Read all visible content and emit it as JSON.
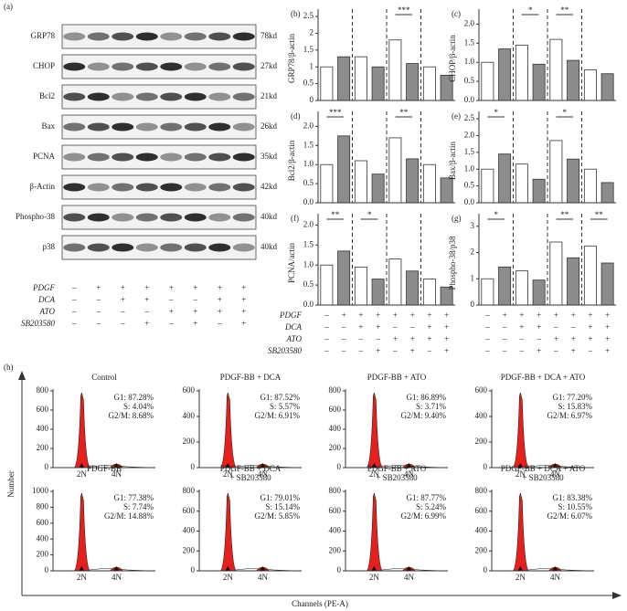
{
  "panel_a": {
    "label": "(a)",
    "rows": [
      {
        "name": "GRP78",
        "size": "78kd"
      },
      {
        "name": "CHOP",
        "size": "27kd"
      },
      {
        "name": "Bcl2",
        "size": "21kd"
      },
      {
        "name": "Bax",
        "size": "26kd"
      },
      {
        "name": "PCNA",
        "size": "35kd"
      },
      {
        "name": "β-Actin",
        "size": "42kd"
      },
      {
        "name": "Phospho-38",
        "size": "40kd"
      },
      {
        "name": "p38",
        "size": "40kd"
      }
    ]
  },
  "treatments": [
    {
      "name": "PDGF",
      "signs": [
        "–",
        "+",
        "+",
        "+",
        "+",
        "+",
        "+",
        "+"
      ]
    },
    {
      "name": "DCA",
      "signs": [
        "–",
        "–",
        "+",
        "+",
        "–",
        "–",
        "+",
        "+"
      ]
    },
    {
      "name": "ATO",
      "signs": [
        "–",
        "–",
        "–",
        "–",
        "+",
        "+",
        "+",
        "+"
      ]
    },
    {
      "name": "SB203580",
      "signs": [
        "–",
        "–",
        "–",
        "+",
        "–",
        "+",
        "–",
        "+"
      ]
    }
  ],
  "chart_data": [
    {
      "type": "bar",
      "label": "(b)",
      "ylabel": "GRP78/β-actin",
      "values": [
        1.0,
        1.3,
        1.3,
        1.0,
        1.8,
        1.1,
        1.0,
        0.75
      ],
      "colors": [
        "#ffffff",
        "#8c8c8c",
        "#ffffff",
        "#8c8c8c",
        "#ffffff",
        "#8c8c8c",
        "#ffffff",
        "#8c8c8c"
      ],
      "significance": [
        null,
        null,
        "***",
        null
      ],
      "ylim": [
        0,
        2.5
      ],
      "yticks": [
        0,
        0.5,
        1,
        1.5,
        2,
        2.5
      ]
    },
    {
      "type": "bar",
      "label": "(c)",
      "ylabel": "CHOP/β-actin",
      "values": [
        1.0,
        1.35,
        1.45,
        0.95,
        1.6,
        1.05,
        0.8,
        0.7
      ],
      "colors": [
        "#ffffff",
        "#8c8c8c",
        "#ffffff",
        "#8c8c8c",
        "#ffffff",
        "#8c8c8c",
        "#ffffff",
        "#8c8c8c"
      ],
      "significance": [
        null,
        "*",
        "**",
        null
      ],
      "ylim": [
        0,
        2.2
      ],
      "yticks": [
        {
          "value": 0,
          "label": "0.0"
        },
        {
          "value": 0.5,
          "label": "0.5"
        },
        {
          "value": 1,
          "label": "1.0"
        },
        {
          "value": 1.5,
          "label": "1.5"
        },
        {
          "value": 2,
          "label": "2.0"
        }
      ]
    },
    {
      "type": "bar",
      "label": "(d)",
      "ylabel": "Bcl2/β-actin",
      "values": [
        1.0,
        1.75,
        1.1,
        0.75,
        1.7,
        1.15,
        1.0,
        0.65
      ],
      "colors": [
        "#ffffff",
        "#8c8c8c",
        "#ffffff",
        "#8c8c8c",
        "#ffffff",
        "#8c8c8c",
        "#ffffff",
        "#8c8c8c"
      ],
      "significance": [
        "***",
        null,
        "**",
        null
      ],
      "ylim": [
        0,
        2.2
      ],
      "yticks": [
        {
          "value": 0,
          "label": "0.0"
        },
        {
          "value": 0.5,
          "label": "0.5"
        },
        {
          "value": 1,
          "label": "1.0"
        },
        {
          "value": 1.5,
          "label": "1.5"
        },
        {
          "value": 2,
          "label": "2.0"
        }
      ]
    },
    {
      "type": "bar",
      "label": "(e)",
      "ylabel": "Bax/β-actin",
      "values": [
        1.0,
        1.45,
        1.15,
        0.7,
        1.85,
        1.3,
        1.0,
        0.6
      ],
      "colors": [
        "#ffffff",
        "#8c8c8c",
        "#ffffff",
        "#8c8c8c",
        "#ffffff",
        "#8c8c8c",
        "#ffffff",
        "#8c8c8c"
      ],
      "significance": [
        "*",
        null,
        "*",
        null
      ],
      "ylim": [
        0,
        2.5
      ],
      "yticks": [
        {
          "value": 0,
          "label": "0.0"
        },
        {
          "value": 0.5,
          "label": "0.5"
        },
        {
          "value": 1,
          "label": "1.0"
        },
        {
          "value": 1.5,
          "label": "1.5"
        },
        {
          "value": 2,
          "label": "2.0"
        },
        {
          "value": 2.5,
          "label": "2.5"
        }
      ]
    },
    {
      "type": "bar",
      "label": "(f)",
      "ylabel": "PCNA/actin",
      "values": [
        1.0,
        1.35,
        0.95,
        0.65,
        1.15,
        0.85,
        0.65,
        0.45
      ],
      "colors": [
        "#ffffff",
        "#8c8c8c",
        "#ffffff",
        "#8c8c8c",
        "#ffffff",
        "#8c8c8c",
        "#ffffff",
        "#8c8c8c"
      ],
      "significance": [
        "**",
        "*",
        null,
        null
      ],
      "ylim": [
        0,
        2.1
      ],
      "yticks": [
        {
          "value": 0,
          "label": "0.0"
        },
        {
          "value": 0.5,
          "label": "0.5"
        },
        {
          "value": 1,
          "label": "1.0"
        },
        {
          "value": 1.5,
          "label": "1.5"
        },
        {
          "value": 2,
          "label": "2.0"
        }
      ]
    },
    {
      "type": "bar",
      "label": "(g)",
      "ylabel": "Phospho-38/p38",
      "values": [
        1.0,
        1.45,
        1.3,
        0.95,
        2.4,
        1.8,
        2.25,
        1.6
      ],
      "colors": [
        "#ffffff",
        "#8c8c8c",
        "#ffffff",
        "#8c8c8c",
        "#ffffff",
        "#8c8c8c",
        "#ffffff",
        "#8c8c8c"
      ],
      "significance": [
        "*",
        null,
        "**",
        "**"
      ],
      "ylim": [
        0,
        3.2
      ],
      "yticks": [
        0,
        1,
        2,
        3
      ]
    }
  ],
  "panel_h": {
    "label": "(h)",
    "ylabel": "Number",
    "xlabel": "Channels (PE-A)",
    "peaks": [
      "2N",
      "4N"
    ],
    "panels": [
      {
        "title": [
          "Control"
        ],
        "stats": [
          "G1: 87.28%",
          "S: 4.04%",
          "G2/M: 8.68%"
        ],
        "yticks": [
          0,
          200,
          400,
          600,
          800
        ]
      },
      {
        "title": [
          "PDGF-BB + DCA"
        ],
        "stats": [
          "G1: 87.52%",
          "S: 5.57%",
          "G2/M: 6.91%"
        ],
        "yticks": [
          0,
          200,
          400,
          600
        ]
      },
      {
        "title": [
          "PDGF-BB + ATO"
        ],
        "stats": [
          "G1: 86.89%",
          "S: 3.71%",
          "G2/M: 9.40%"
        ],
        "yticks": [
          0,
          200,
          400,
          600,
          800
        ]
      },
      {
        "title": [
          "PDGF-BB + DCA + ATO"
        ],
        "stats": [
          "G1: 77.20%",
          "S: 15.83%",
          "G2/M: 6.97%"
        ],
        "yticks": [
          0,
          200,
          400,
          600
        ]
      },
      {
        "title": [
          "PDGF-BB"
        ],
        "stats": [
          "G1: 77.38%",
          "S: 7.74%",
          "G2/M: 14.88%"
        ],
        "yticks": [
          0,
          200,
          400,
          600,
          800,
          1000
        ]
      },
      {
        "title": [
          "PDGF-BB + DCA",
          "+ SB203580"
        ],
        "stats": [
          "G1: 79.01%",
          "S: 15.14%",
          "G2/M: 5.85%"
        ],
        "yticks": [
          0,
          200,
          400,
          600,
          800
        ]
      },
      {
        "title": [
          "PDGF-BB + ATO",
          "+ SB203580"
        ],
        "stats": [
          "G1: 87.77%",
          "S: 5.24%",
          "G2/M: 6.99%"
        ],
        "yticks": [
          0,
          200,
          400,
          600,
          800
        ]
      },
      {
        "title": [
          "PDGF-BB + DCA + ATO",
          "+ SB203580"
        ],
        "stats": [
          "G1: 83.38%",
          "S: 10.55%",
          "G2/M: 6.07%"
        ],
        "yticks": [
          0,
          200,
          400,
          600,
          800
        ]
      }
    ]
  }
}
